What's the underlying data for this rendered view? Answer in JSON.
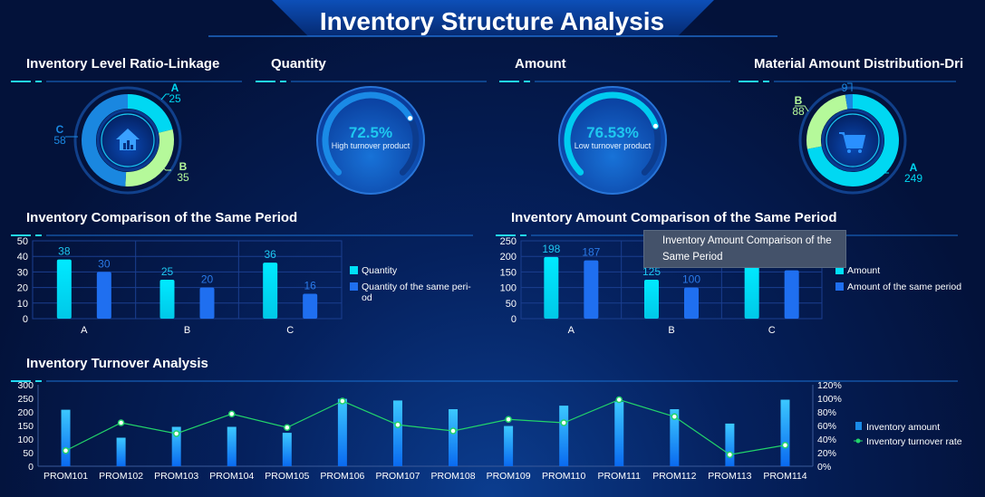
{
  "title": "Inventory Structure Analysis",
  "colors": {
    "cyan": "#00d8f2",
    "green": "#b5f99a",
    "blue": "#1a87e0",
    "deep_blue": "#1f6ff0",
    "line": "#22d46a"
  },
  "panels": {
    "ratio": {
      "title": "Inventory Level Ratio-Linkage",
      "icon": "house-chart-icon",
      "slices": [
        {
          "label": "A",
          "value": 25
        },
        {
          "label": "B",
          "value": 35
        },
        {
          "label": "C",
          "value": 58
        }
      ]
    },
    "quantity": {
      "title": "Quantity",
      "percent_text": "72.5%",
      "percent": 72.5,
      "caption": "High turnover product"
    },
    "amount": {
      "title": "Amount",
      "percent_text": "76.53%",
      "percent": 76.53,
      "caption": "Low turnover product"
    },
    "material": {
      "title": "Material Amount Distribution-Dri",
      "icon": "shopping-cart-icon",
      "slices": [
        {
          "label": "A",
          "value": 249
        },
        {
          "label": "B",
          "value": 88
        },
        {
          "label": "",
          "value": 9
        }
      ]
    }
  },
  "tooltip": {
    "text": "Inventory Amount Comparison of the Same Period"
  },
  "chart_data": [
    {
      "type": "bar",
      "title": "Inventory Comparison of the Same Period",
      "categories": [
        "A",
        "B",
        "C"
      ],
      "series": [
        {
          "name": "Quantity",
          "values": [
            38,
            25,
            36
          ]
        },
        {
          "name": "Quantity of the same period",
          "values": [
            30,
            20,
            16
          ]
        }
      ],
      "ylim": [
        0,
        50
      ],
      "yticks": [
        "0",
        "10",
        "20",
        "30",
        "40",
        "50"
      ],
      "legend": "right"
    },
    {
      "type": "bar",
      "title": "Inventory Amount Comparison of the Same Period",
      "categories": [
        "A",
        "B",
        "C"
      ],
      "series": [
        {
          "name": "Amount",
          "values": [
            198,
            125,
            170
          ]
        },
        {
          "name": "Amount of the same period",
          "values": [
            187,
            100,
            155
          ]
        }
      ],
      "ylim": [
        0,
        250
      ],
      "yticks": [
        "0",
        "50",
        "100",
        "150",
        "200",
        "250"
      ],
      "legend": "right"
    },
    {
      "type": "bar+line",
      "title": "Inventory Turnover Analysis",
      "categories": [
        "PROM101",
        "PROM102",
        "PROM103",
        "PROM104",
        "PROM105",
        "PROM106",
        "PROM107",
        "PROM108",
        "PROM109",
        "PROM110",
        "PROM111",
        "PROM112",
        "PROM113",
        "PROM114"
      ],
      "series": [
        {
          "name": "Inventory amount",
          "values": [
            208,
            105,
            145,
            145,
            123,
            248,
            242,
            210,
            148,
            223,
            237,
            210,
            157,
            245
          ]
        },
        {
          "name": "Inventory turnover rate",
          "values": [
            23,
            64,
            48,
            77,
            57,
            96,
            61,
            52,
            69,
            64,
            98,
            73,
            17,
            31
          ]
        }
      ],
      "ylim": [
        0,
        300
      ],
      "yticks": [
        "0",
        "50",
        "100",
        "150",
        "200",
        "250",
        "300"
      ],
      "y2lim": [
        0,
        120
      ],
      "y2ticks": [
        "0%",
        "20%",
        "40%",
        "60%",
        "80%",
        "100%",
        "120%"
      ],
      "legend": "right"
    }
  ]
}
